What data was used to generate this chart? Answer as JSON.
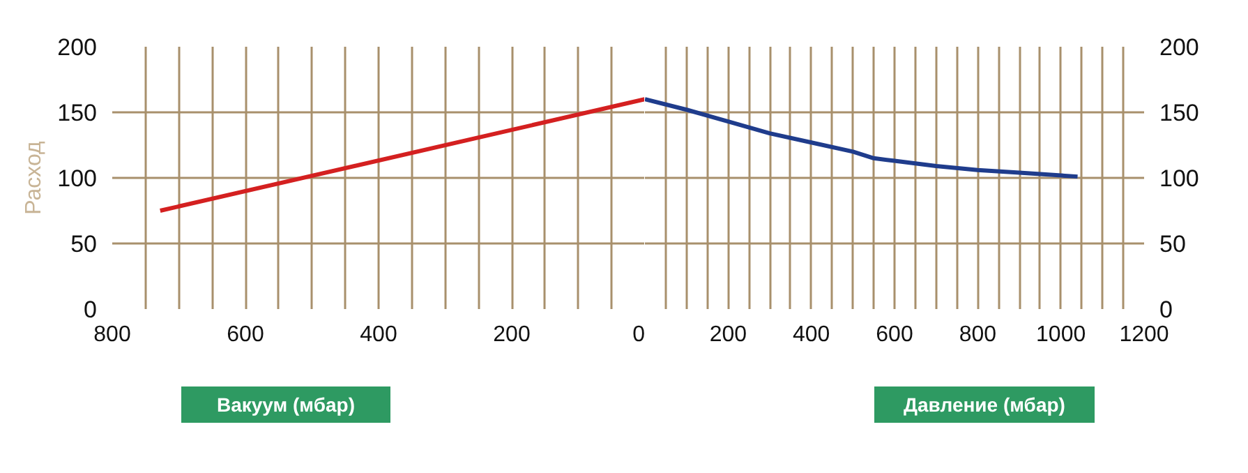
{
  "chart_data": [
    {
      "type": "line",
      "ylabel": "Расход",
      "xlabel": "Вакуум (мбар)",
      "xlim": [
        800,
        0
      ],
      "ylim": [
        0,
        200
      ],
      "xticks": [
        800,
        {
          "value": 750,
          "label": null
        },
        {
          "value": 700,
          "label": null
        },
        {
          "value": 650,
          "label": null
        },
        600,
        {
          "value": 550,
          "label": null
        },
        {
          "value": 500,
          "label": null
        },
        {
          "value": 450,
          "label": null
        },
        400,
        {
          "value": 350,
          "label": null
        },
        {
          "value": 300,
          "label": null
        },
        {
          "value": 250,
          "label": null
        },
        200,
        {
          "value": 150,
          "label": null
        },
        {
          "value": 100,
          "label": null
        },
        {
          "value": 50,
          "label": null
        },
        0
      ],
      "yticks": [
        0,
        50,
        100,
        150,
        200
      ],
      "grid": true,
      "line_style": "solid",
      "series": [
        {
          "color": "#d42020",
          "x": [
            728,
            0
          ],
          "values": [
            75,
            160
          ]
        }
      ]
    },
    {
      "type": "line",
      "xlabel": "Давление (мбар)",
      "xlim": [
        0,
        1200
      ],
      "ylim": [
        0,
        200
      ],
      "xticks": [
        {
          "value": 50,
          "label": null
        },
        {
          "value": 100,
          "label": null
        },
        {
          "value": 150,
          "label": null
        },
        200,
        {
          "value": 250,
          "label": null
        },
        {
          "value": 300,
          "label": null
        },
        {
          "value": 350,
          "label": null
        },
        400,
        {
          "value": 450,
          "label": null
        },
        {
          "value": 500,
          "label": null
        },
        {
          "value": 550,
          "label": null
        },
        600,
        {
          "value": 650,
          "label": null
        },
        {
          "value": 700,
          "label": null
        },
        {
          "value": 750,
          "label": null
        },
        800,
        {
          "value": 850,
          "label": null
        },
        {
          "value": 900,
          "label": null
        },
        {
          "value": 950,
          "label": null
        },
        1000,
        {
          "value": 1050,
          "label": null
        },
        {
          "value": 1100,
          "label": null
        },
        {
          "value": 1150,
          "label": null
        },
        1200
      ],
      "yticks": [
        0,
        50,
        100,
        150,
        200
      ],
      "grid": true,
      "line_style": "solid",
      "series": [
        {
          "color": "#1f3c8c",
          "x": [
            0,
            100,
            200,
            300,
            400,
            500,
            550,
            600,
            700,
            800,
            900,
            1040
          ],
          "values": [
            160,
            152,
            143,
            134,
            127,
            120,
            115,
            113,
            109,
            106,
            104,
            101
          ]
        }
      ]
    }
  ]
}
